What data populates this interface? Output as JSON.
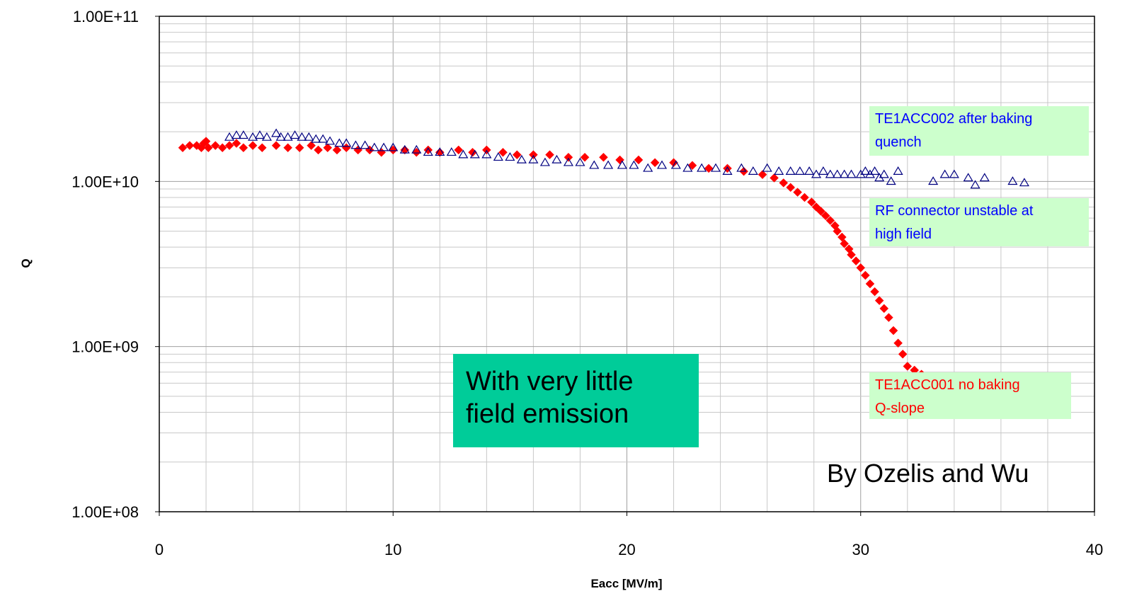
{
  "chart_data": {
    "type": "scatter",
    "xlabel": "Eacc [MV/m]",
    "ylabel": "Q",
    "xlim": [
      0,
      40
    ],
    "ylim": [
      100000000.0,
      100000000000.0
    ],
    "yscale": "log",
    "x_ticks": [
      "0",
      "10",
      "20",
      "30",
      "40"
    ],
    "y_ticks": [
      "1.00E+08",
      "1.00E+09",
      "1.00E+10",
      "1.00E+11"
    ],
    "grid": true,
    "series": [
      {
        "marker": "diamond",
        "color": "#ff0000",
        "x": [
          1.0,
          1.3,
          1.6,
          1.8,
          1.9,
          2.0,
          2.1,
          2.4,
          2.7,
          3.0,
          3.3,
          3.6,
          4.0,
          4.4,
          5.0,
          5.5,
          6.0,
          6.5,
          6.8,
          7.2,
          7.6,
          8.0,
          8.5,
          9.0,
          9.5,
          10.0,
          10.5,
          11.0,
          11.5,
          12.0,
          12.8,
          13.4,
          14.0,
          14.7,
          15.3,
          16.0,
          16.7,
          17.5,
          18.2,
          19.0,
          19.7,
          20.5,
          21.2,
          22.0,
          22.8,
          23.5,
          24.3,
          25.0,
          25.8,
          26.3,
          26.7,
          27.0,
          27.3,
          27.6,
          27.9,
          28.1,
          28.3,
          28.5,
          28.7,
          28.9,
          29.0,
          29.2,
          29.3,
          29.5,
          29.6,
          29.8,
          30.0,
          30.2,
          30.4,
          30.6,
          30.8,
          31.0,
          31.2,
          31.4,
          31.6,
          31.8,
          32.0,
          32.3,
          32.6
        ],
        "y": [
          16000000000.0,
          16500000000.0,
          16500000000.0,
          16000000000.0,
          17000000000.0,
          17500000000.0,
          16000000000.0,
          16500000000.0,
          16000000000.0,
          16500000000.0,
          17000000000.0,
          16000000000.0,
          16500000000.0,
          16000000000.0,
          16500000000.0,
          16000000000.0,
          16000000000.0,
          16500000000.0,
          15500000000.0,
          16000000000.0,
          15500000000.0,
          16000000000.0,
          15500000000.0,
          15500000000.0,
          15000000000.0,
          15500000000.0,
          15500000000.0,
          15000000000.0,
          15500000000.0,
          15000000000.0,
          15500000000.0,
          15000000000.0,
          15500000000.0,
          15000000000.0,
          14500000000.0,
          14500000000.0,
          14500000000.0,
          14000000000.0,
          14000000000.0,
          14000000000.0,
          13500000000.0,
          13500000000.0,
          13000000000.0,
          13000000000.0,
          12500000000.0,
          12000000000.0,
          12000000000.0,
          11500000000.0,
          11000000000.0,
          10500000000.0,
          9800000000.0,
          9200000000.0,
          8600000000.0,
          8000000000.0,
          7500000000.0,
          7000000000.0,
          6600000000.0,
          6200000000.0,
          5800000000.0,
          5400000000.0,
          5000000000.0,
          4600000000.0,
          4200000000.0,
          3900000000.0,
          3600000000.0,
          3300000000.0,
          3000000000.0,
          2700000000.0,
          2400000000.0,
          2150000000.0,
          1900000000.0,
          1700000000.0,
          1500000000.0,
          1250000000.0,
          1050000000.0,
          900000000.0,
          760000000.0,
          720000000.0,
          680000000.0
        ]
      },
      {
        "marker": "triangle-open",
        "color": "#000080",
        "x": [
          3.0,
          3.3,
          3.6,
          4.0,
          4.3,
          4.6,
          5.0,
          5.2,
          5.5,
          5.8,
          6.1,
          6.4,
          6.7,
          7.0,
          7.3,
          7.7,
          8.0,
          8.4,
          8.8,
          9.2,
          9.6,
          10.0,
          10.5,
          11.0,
          11.5,
          12.0,
          12.5,
          13.0,
          13.5,
          14.0,
          14.5,
          15.0,
          15.5,
          16.0,
          16.5,
          17.0,
          17.5,
          18.0,
          18.6,
          19.2,
          19.8,
          20.3,
          20.9,
          21.5,
          22.1,
          22.6,
          23.2,
          23.8,
          24.3,
          24.9,
          25.4,
          26.0,
          26.5,
          27.0,
          27.4,
          27.8,
          28.1,
          28.4,
          28.7,
          29.0,
          29.3,
          29.6,
          30.0,
          30.2,
          30.4,
          30.6,
          30.8,
          31.0,
          31.3,
          31.6,
          33.1,
          33.6,
          34.0,
          34.6,
          34.9,
          35.3,
          36.5,
          37.0
        ],
        "y": [
          18500000000.0,
          19000000000.0,
          19000000000.0,
          18500000000.0,
          19000000000.0,
          18500000000.0,
          19500000000.0,
          18500000000.0,
          18500000000.0,
          19000000000.0,
          18500000000.0,
          18500000000.0,
          18000000000.0,
          18000000000.0,
          17500000000.0,
          17000000000.0,
          17000000000.0,
          16500000000.0,
          16500000000.0,
          16000000000.0,
          16000000000.0,
          16000000000.0,
          15500000000.0,
          15500000000.0,
          15000000000.0,
          15000000000.0,
          15000000000.0,
          14500000000.0,
          14500000000.0,
          14500000000.0,
          14000000000.0,
          14000000000.0,
          13500000000.0,
          13500000000.0,
          13000000000.0,
          13500000000.0,
          13000000000.0,
          13000000000.0,
          12500000000.0,
          12500000000.0,
          12500000000.0,
          12500000000.0,
          12000000000.0,
          12500000000.0,
          12500000000.0,
          12000000000.0,
          12000000000.0,
          12000000000.0,
          11500000000.0,
          12000000000.0,
          11500000000.0,
          12000000000.0,
          11500000000.0,
          11500000000.0,
          11500000000.0,
          11500000000.0,
          11000000000.0,
          11500000000.0,
          11000000000.0,
          11000000000.0,
          11000000000.0,
          11000000000.0,
          11000000000.0,
          11500000000.0,
          11000000000.0,
          11500000000.0,
          10500000000.0,
          11000000000.0,
          10000000000.0,
          11500000000.0,
          10000000000.0,
          11000000000.0,
          11000000000.0,
          10500000000.0,
          9500000000.0,
          10500000000.0,
          10000000000.0,
          9800000000.0
        ]
      }
    ]
  },
  "annotations": {
    "te1acc002": [
      "TE1ACC002 after baking",
      "quench"
    ],
    "rf_connector": [
      "RF connector unstable at",
      "high field"
    ],
    "te1acc001": [
      "TE1ACC001 no baking",
      "Q-slope"
    ],
    "field_emission": [
      "With very little",
      "field emission"
    ],
    "credit": "By Ozelis and Wu"
  },
  "colors": {
    "annotation_bg": "#ccffcc",
    "highlight_bg": "#00cc99",
    "blue_text": "#0000ff",
    "red_text": "#ff0000"
  }
}
